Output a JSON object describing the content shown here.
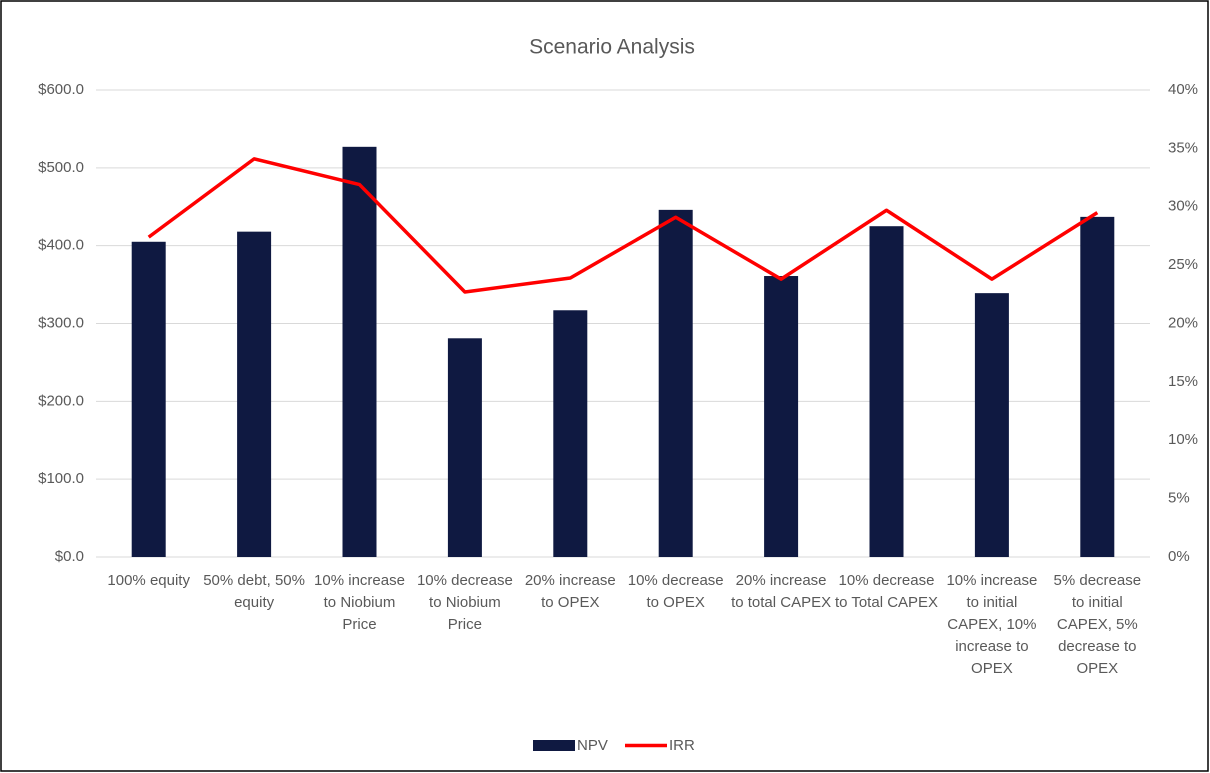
{
  "chart_data": {
    "type": "bar-line",
    "title": "Scenario Analysis",
    "categories": [
      "100% equity",
      "50% debt, 50% equity",
      "10% increase to Niobium Price",
      "10% decrease to Niobium Price",
      "20% increase to OPEX",
      "10% decrease to OPEX",
      "20% increase to total CAPEX",
      "10% decrease to Total CAPEX",
      "10% increase to initial CAPEX, 10% increase to OPEX",
      "5% decrease to initial CAPEX, 5% decrease to OPEX"
    ],
    "series": [
      {
        "name": "NPV",
        "type": "bar",
        "color": "#0f1941",
        "values": [
          405,
          418,
          527,
          281,
          317,
          446,
          361,
          425,
          339,
          437
        ]
      },
      {
        "name": "IRR",
        "type": "line",
        "axis": "y2",
        "color": "#ff0000",
        "values": [
          27.4,
          34.1,
          31.9,
          22.7,
          23.9,
          29.1,
          23.8,
          29.7,
          23.8,
          29.5
        ]
      }
    ],
    "ylim": [
      0,
      600
    ],
    "yticks": [
      {
        "value": 0,
        "label": "$0.0"
      },
      {
        "value": 100,
        "label": "$100.0"
      },
      {
        "value": 200,
        "label": "$200.0"
      },
      {
        "value": 300,
        "label": "$300.0"
      },
      {
        "value": 400,
        "label": "$400.0"
      },
      {
        "value": 500,
        "label": "$500.0"
      },
      {
        "value": 600,
        "label": "$600.0"
      }
    ],
    "y2lim": [
      0,
      40
    ],
    "y2ticks": [
      {
        "value": 0,
        "label": "0%"
      },
      {
        "value": 5,
        "label": "5%"
      },
      {
        "value": 10,
        "label": "10%"
      },
      {
        "value": 15,
        "label": "15%"
      },
      {
        "value": 20,
        "label": "20%"
      },
      {
        "value": 25,
        "label": "25%"
      },
      {
        "value": 30,
        "label": "30%"
      },
      {
        "value": 35,
        "label": "35%"
      },
      {
        "value": 40,
        "label": "40%"
      }
    ],
    "grid": true,
    "legend": "bottom"
  }
}
